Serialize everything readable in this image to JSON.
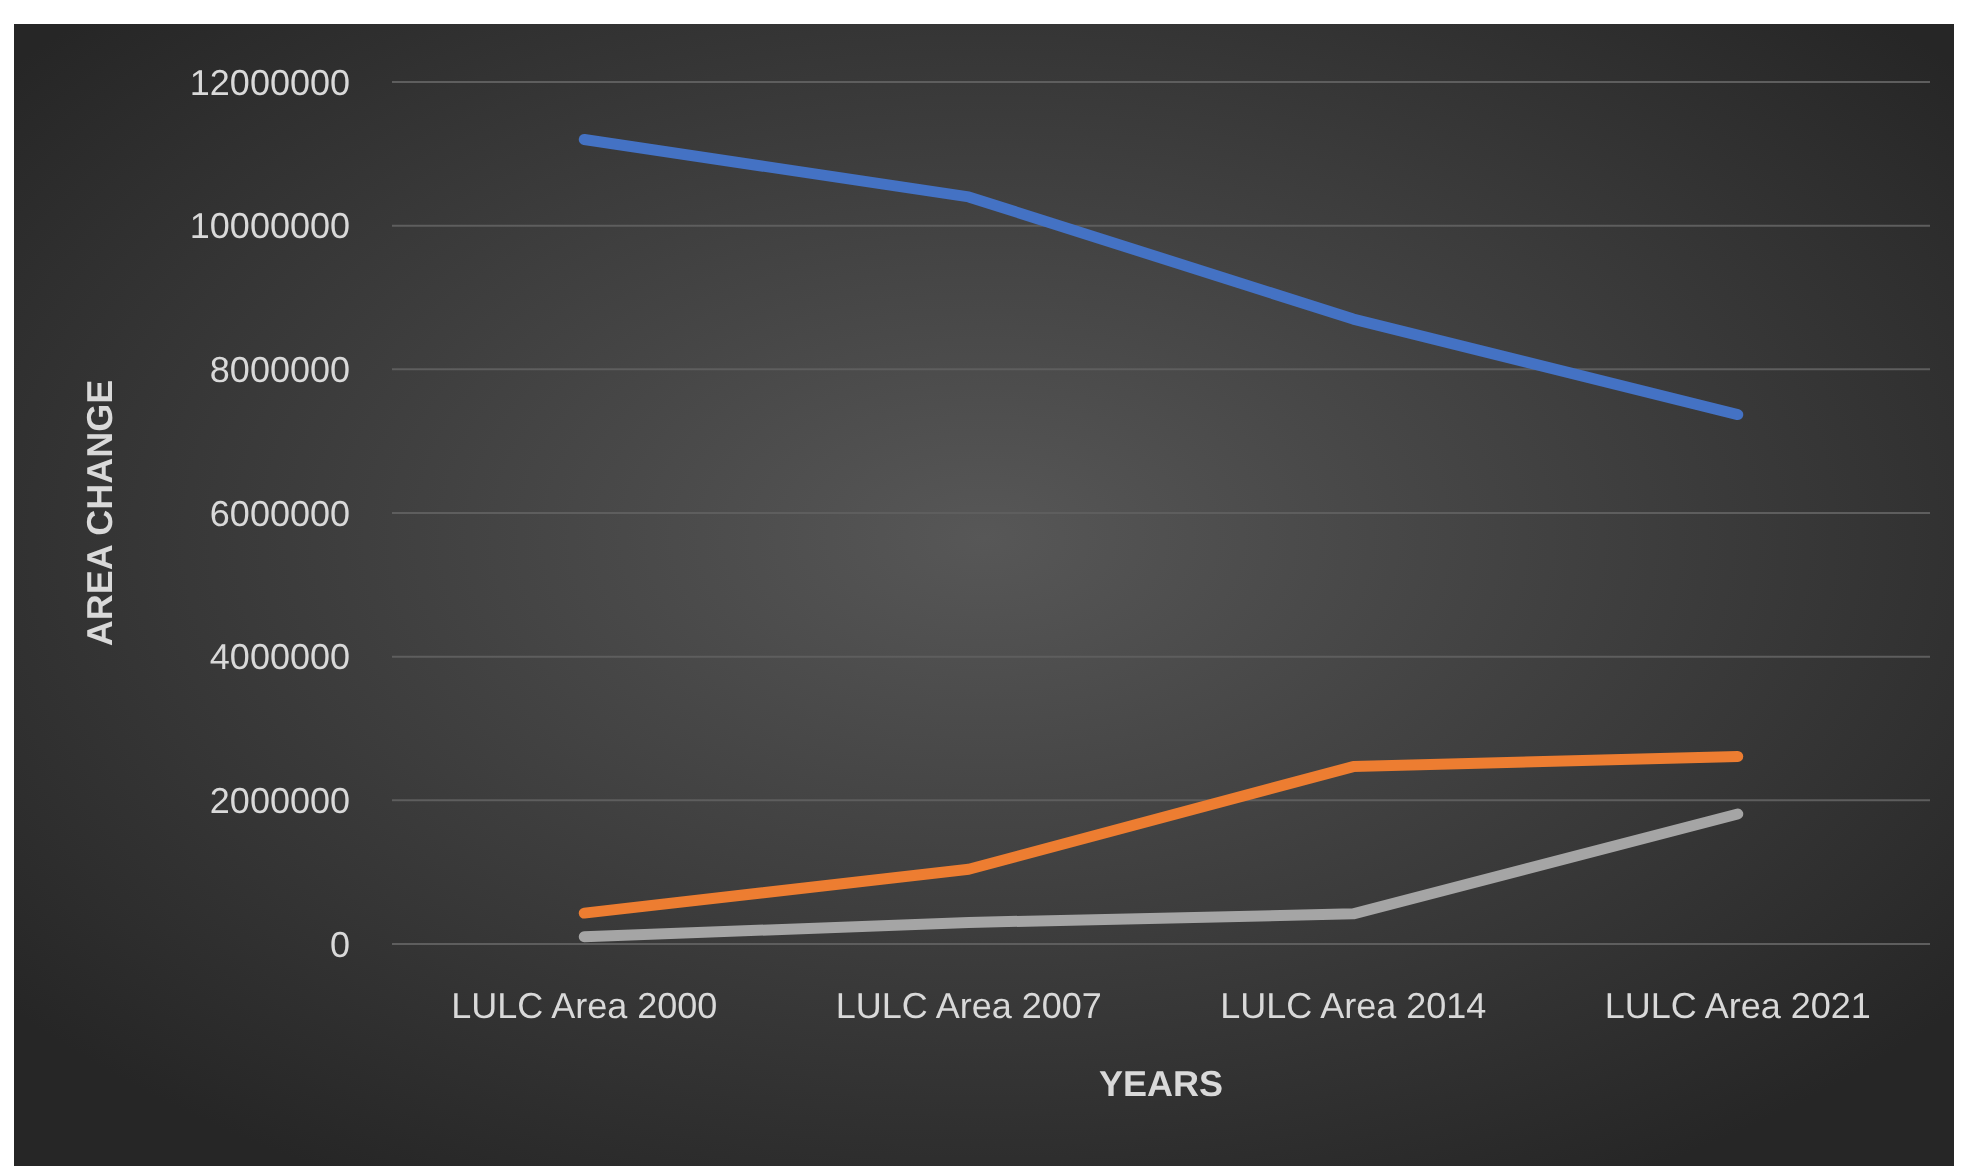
{
  "chart_data": {
    "type": "line",
    "xlabel": "YEARS",
    "ylabel": "AREA CHANGE",
    "categories": [
      "LULC Area 2000",
      "LULC Area 2007",
      "LULC Area 2014",
      "LULC Area 2021"
    ],
    "series": [
      {
        "color": "#4472c4",
        "values": [
          11200000,
          10400000,
          8700000,
          7370000
        ]
      },
      {
        "color": "#ed7d31",
        "values": [
          430000,
          1040000,
          2470000,
          2610000
        ]
      },
      {
        "color": "#a5a5a5",
        "values": [
          100000,
          300000,
          420000,
          1810000
        ]
      }
    ],
    "ylim": [
      0,
      12000000
    ],
    "yticks": [
      0,
      2000000,
      4000000,
      6000000,
      8000000,
      10000000,
      12000000
    ],
    "grid": "y",
    "marker": "none",
    "line_style": "solid"
  }
}
